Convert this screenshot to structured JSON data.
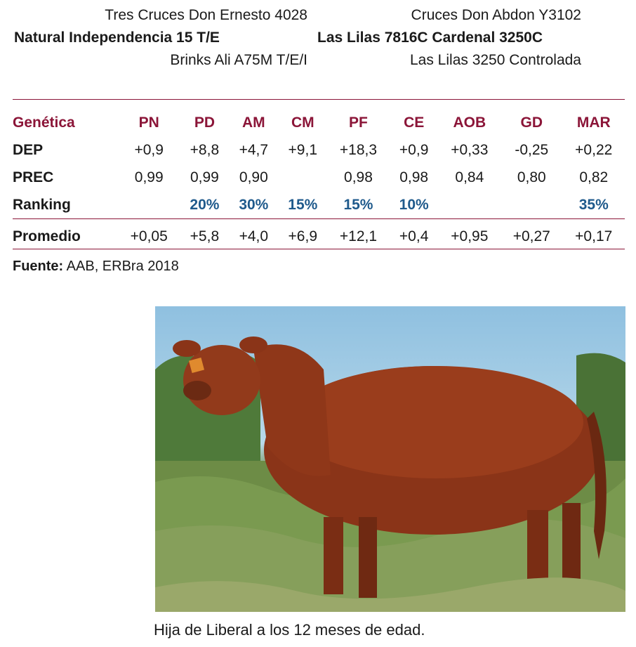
{
  "pedigree": {
    "left": {
      "sire_of_sire": "Tres Cruces Don Ernesto 4028",
      "sire": "Natural Independencia 15 T/E",
      "dam_of_sire": "Brinks Ali A75M T/E/I"
    },
    "right": {
      "sire_of_dam": "Cruces Don Abdon Y3102",
      "dam": "Las Lilas 7816C Cardenal 3250C",
      "dam_of_dam": "Las Lilas 3250 Controlada"
    }
  },
  "table": {
    "header_label": "Genética",
    "columns": [
      "PN",
      "PD",
      "AM",
      "CM",
      "PF",
      "CE",
      "AOB",
      "GD",
      "MAR"
    ],
    "rows": [
      {
        "label": "DEP",
        "values": [
          "+0,9",
          "+8,8",
          "+4,7",
          "+9,1",
          "+18,3",
          "+0,9",
          "+0,33",
          "-0,25",
          "+0,22"
        ]
      },
      {
        "label": "PREC",
        "values": [
          "0,99",
          "0,99",
          "0,90",
          "",
          "0,98",
          "0,98",
          "0,84",
          "0,80",
          "0,82"
        ]
      },
      {
        "label": "Ranking",
        "values": [
          "",
          "20%",
          "30%",
          "15%",
          "15%",
          "10%",
          "",
          "",
          "35%"
        ]
      },
      {
        "label": "Promedio",
        "values": [
          "+0,05",
          "+5,8",
          "+4,0",
          "+6,9",
          "+12,1",
          "+0,4",
          "+0,95",
          "+0,27",
          "+0,17"
        ]
      }
    ]
  },
  "source": {
    "label": "Fuente:",
    "text": " AAB, ERBra 2018"
  },
  "photo": {
    "icon": "red-heifer-photo"
  },
  "caption": "Hija de Liberal a los 12 meses de edad.",
  "colors": {
    "accent": "#8b1538",
    "ranking": "#1f5a8c"
  }
}
